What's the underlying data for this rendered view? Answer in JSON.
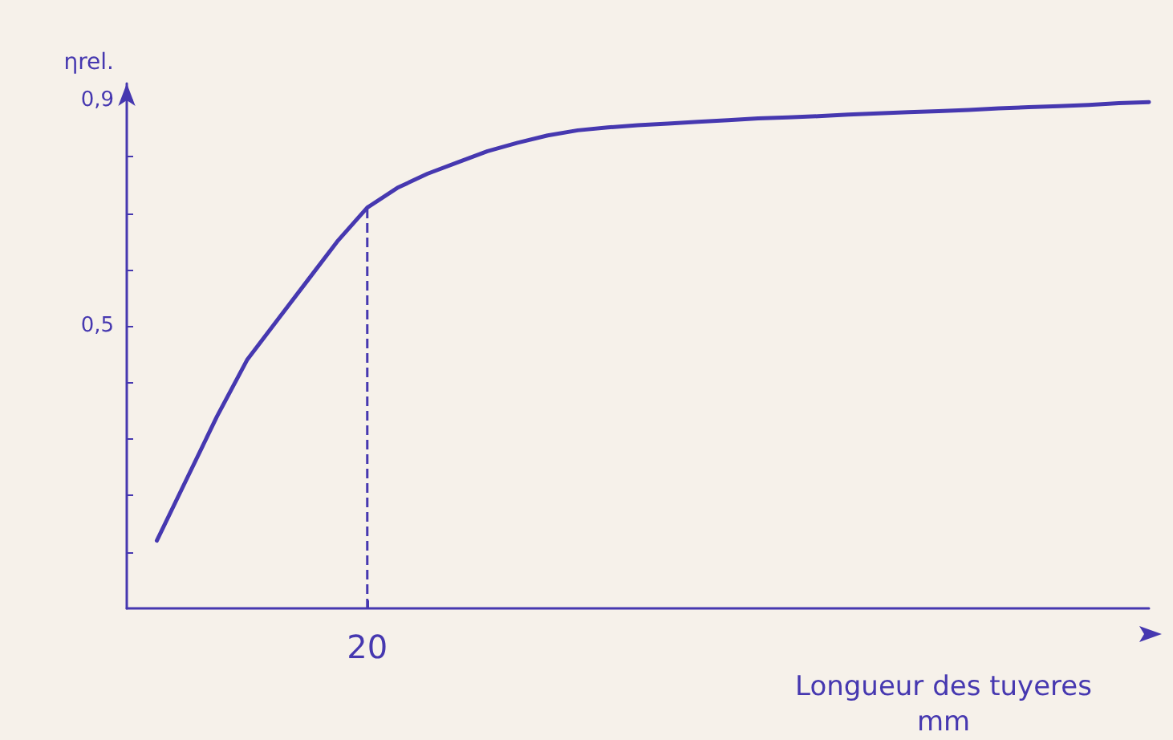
{
  "chart_data": {
    "type": "line",
    "ylabel": "ηrel.",
    "xlabel": "Longueur des tuyeres\nmm",
    "categories": [
      null,
      null,
      null,
      null,
      null,
      null,
      null,
      null,
      "20",
      null,
      null,
      null,
      null,
      null,
      null,
      null,
      null,
      null,
      null,
      null,
      null,
      null,
      null,
      null,
      null,
      null,
      null,
      null,
      null,
      null,
      null,
      null,
      null,
      null,
      null
    ],
    "ylim": [
      0,
      0.93
    ],
    "yticks": [
      {
        "value": 0.1,
        "label": null
      },
      {
        "value": 0.2,
        "label": null
      },
      {
        "value": 0.3,
        "label": null
      },
      {
        "value": 0.4,
        "label": null
      },
      {
        "value": 0.5,
        "label": "0,5"
      },
      {
        "value": 0.6,
        "label": null
      },
      {
        "value": 0.7,
        "label": null
      },
      {
        "value": 0.8,
        "label": null
      },
      {
        "value": 0.9,
        "label": "0,9"
      }
    ],
    "grid": false,
    "marker": "none",
    "line_style": "solid",
    "series": [
      {
        "color": "#4638b0",
        "values": [
          null,
          0.12,
          0.23,
          0.34,
          0.44,
          0.51,
          0.58,
          0.65,
          0.71,
          0.745,
          0.77,
          0.79,
          0.81,
          0.825,
          0.838,
          0.847,
          0.852,
          0.856,
          0.859,
          0.862,
          0.865,
          0.868,
          0.87,
          0.872,
          0.875,
          0.877,
          0.879,
          0.881,
          0.883,
          0.886,
          0.888,
          0.89,
          0.892,
          0.895,
          0.897
        ]
      }
    ],
    "ref_lines": [
      {
        "axis": "x",
        "value": "20",
        "label": null,
        "color": "#4638b0",
        "line_style": "dashed"
      }
    ]
  }
}
